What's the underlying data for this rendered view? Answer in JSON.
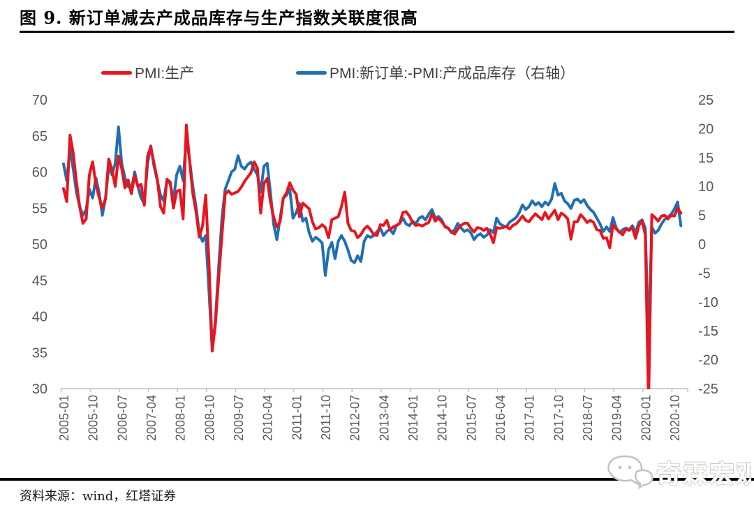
{
  "title": "图 9. 新订单减去产成品库存与生产指数关联度很高",
  "source": "资料来源：wind，红塔证券",
  "watermark": "奇霖宏观",
  "legend": [
    {
      "label": "PMI:生产",
      "color": "#e8151d"
    },
    {
      "label": "PMI:新订单:-PMI:产成品库存（右轴）",
      "color": "#1f6fb5"
    }
  ],
  "chart_data": {
    "type": "line",
    "title": "新订单减去产成品库存与生产指数关联度很高",
    "x_start": "2005-01",
    "x_end": "2020-12",
    "x_frequency": "monthly",
    "x_tick_labels": [
      "2005-01",
      "2005-10",
      "2006-07",
      "2007-04",
      "2008-01",
      "2008-10",
      "2009-07",
      "2010-04",
      "2011-01",
      "2011-10",
      "2012-07",
      "2013-04",
      "2014-01",
      "2014-10",
      "2015-07",
      "2016-04",
      "2017-01",
      "2017-10",
      "2018-07",
      "2019-04",
      "2020-01",
      "2020-10"
    ],
    "left_axis": {
      "min": 30,
      "max": 70,
      "ticks": [
        70,
        65,
        60,
        55,
        50,
        45,
        40,
        35,
        30
      ]
    },
    "right_axis": {
      "min": -25,
      "max": 25,
      "ticks": [
        25,
        20,
        15,
        10,
        5,
        0,
        -5,
        -10,
        -15,
        -20,
        -25
      ]
    },
    "grid": false,
    "legend_position": "top",
    "series": [
      {
        "name": "PMI:生产",
        "axis": "left",
        "color": "#e8151d",
        "values": [
          57.7,
          55.9,
          65.1,
          62.6,
          58.6,
          55.2,
          52.9,
          53.5,
          59.6,
          61.4,
          58.3,
          56.5,
          55.0,
          56.3,
          61.8,
          60.3,
          58.0,
          62.2,
          60.5,
          57.8,
          58.9,
          57.0,
          59.5,
          58.0,
          58.3,
          55.4,
          62.2,
          63.5,
          61.2,
          59.0,
          55.2,
          54.3,
          59.0,
          58.6,
          55.0,
          57.3,
          57.5,
          53.5,
          66.5,
          61.5,
          57.0,
          54.5,
          51.0,
          52.5,
          56.8,
          47.5,
          35.2,
          39.0,
          45.3,
          51.2,
          56.9,
          57.4,
          56.9,
          57.1,
          57.3,
          57.9,
          58.7,
          59.3,
          59.9,
          61.4,
          60.5,
          54.3,
          58.4,
          59.1,
          55.9,
          53.8,
          52.4,
          53.1,
          56.4,
          57.1,
          58.5,
          57.5,
          56.9,
          53.8,
          55.7,
          55.3,
          54.9,
          53.1,
          52.1,
          52.3,
          52.7,
          52.3,
          50.9,
          53.4,
          53.6,
          53.8,
          55.2,
          57.2,
          52.9,
          51.9,
          51.8,
          50.9,
          51.3,
          52.1,
          52.5,
          52.0,
          51.3,
          51.2,
          52.7,
          52.6,
          53.3,
          52.0,
          52.4,
          52.6,
          52.9,
          54.4,
          54.5,
          53.9,
          53.0,
          52.6,
          52.7,
          52.5,
          52.8,
          53.0,
          54.2,
          53.2,
          53.6,
          53.1,
          52.5,
          52.2,
          51.7,
          51.4,
          52.1,
          52.6,
          52.9,
          52.9,
          52.2,
          51.7,
          52.3,
          52.2,
          51.9,
          52.2,
          51.4,
          50.2,
          52.3,
          52.2,
          52.3,
          52.5,
          52.1,
          52.6,
          52.8,
          53.3,
          53.9,
          53.3,
          53.1,
          53.7,
          54.2,
          53.8,
          53.4,
          54.4,
          53.5,
          54.1,
          54.7,
          53.4,
          54.3,
          54.0,
          53.5,
          50.7,
          53.1,
          53.1,
          54.1,
          53.6,
          53.0,
          53.3,
          53.0,
          52.0,
          51.9,
          50.8,
          50.9,
          49.5,
          52.7,
          52.1,
          51.7,
          51.3,
          52.1,
          51.9,
          52.3,
          50.8,
          52.6,
          53.2,
          51.3,
          27.8,
          54.1,
          53.7,
          53.2,
          53.9,
          54.0,
          53.5,
          54.0,
          53.9,
          55.0,
          54.3
        ]
      },
      {
        "name": "PMI:新订单:-PMI:产成品库存（右轴）",
        "axis": "right",
        "color": "#1f6fb5",
        "values": [
          13.9,
          11.0,
          16.5,
          13.0,
          9.0,
          6.5,
          5.0,
          6.0,
          9.5,
          8.0,
          11.5,
          9.0,
          5.0,
          8.0,
          13.5,
          12.0,
          14.0,
          20.3,
          14.0,
          11.5,
          10.0,
          9.5,
          12.5,
          10.0,
          8.0,
          7.0,
          14.0,
          17.0,
          13.5,
          11.0,
          8.5,
          7.5,
          11.0,
          10.5,
          7.5,
          12.0,
          13.5,
          11.0,
          18.5,
          14.5,
          10.0,
          6.5,
          2.0,
          0.5,
          1.5,
          -8.0,
          -18.4,
          -13.0,
          -4.0,
          4.5,
          9.5,
          11.0,
          12.5,
          13.0,
          15.3,
          13.5,
          13.0,
          13.8,
          14.2,
          13.0,
          12.0,
          9.0,
          13.5,
          14.0,
          9.0,
          3.5,
          0.8,
          4.5,
          8.0,
          8.5,
          9.5,
          4.5,
          5.5,
          7.0,
          4.0,
          4.5,
          2.0,
          0.5,
          1.2,
          0.8,
          0.2,
          -5.4,
          -1.0,
          0.3,
          -2.5,
          0.5,
          1.5,
          0.5,
          -1.0,
          -2.8,
          -3.2,
          -2.0,
          -3.0,
          0.5,
          1.5,
          1.2,
          1.5,
          2.2,
          2.8,
          1.5,
          2.2,
          2.6,
          1.8,
          3.2,
          3.6,
          4.5,
          3.5,
          3.2,
          4.0,
          3.5,
          4.5,
          4.8,
          4.2,
          5.2,
          6.0,
          4.5,
          4.8,
          4.2,
          3.0,
          2.8,
          2.0,
          2.5,
          3.6,
          2.8,
          2.2,
          2.5,
          2.0,
          0.8,
          1.5,
          1.8,
          1.2,
          1.6,
          2.5,
          2.0,
          4.5,
          3.5,
          3.2,
          3.0,
          3.8,
          4.2,
          4.6,
          5.5,
          6.8,
          6.0,
          6.5,
          7.5,
          6.8,
          7.2,
          6.5,
          7.3,
          6.8,
          7.8,
          10.5,
          8.5,
          8.8,
          7.5,
          7.0,
          6.2,
          7.6,
          7.8,
          7.2,
          7.7,
          6.7,
          6.0,
          5.5,
          4.5,
          3.5,
          2.2,
          3.0,
          2.2,
          4.6,
          2.8,
          2.0,
          2.5,
          2.8,
          2.5,
          3.2,
          2.0,
          3.8,
          4.2,
          2.8,
          -16.8,
          3.0,
          1.9,
          2.4,
          3.5,
          4.3,
          4.7,
          5.2,
          6.1,
          7.3,
          3.2
        ]
      }
    ]
  }
}
